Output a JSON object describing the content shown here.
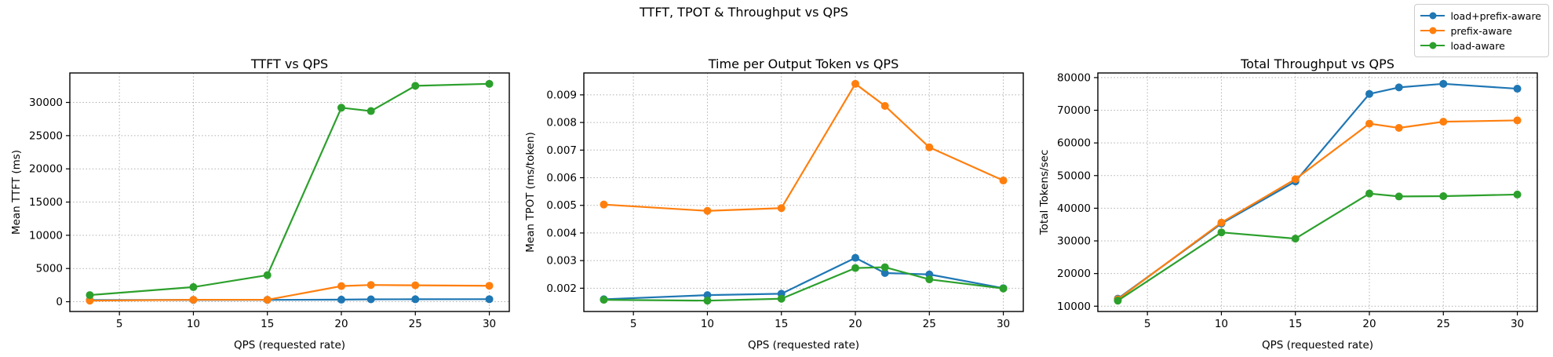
{
  "figure_title": "TTFT, TPOT & Throughput vs QPS",
  "legend": {
    "position": "top-right",
    "items": [
      {
        "label": "load+prefix-aware",
        "color": "#1f77b4"
      },
      {
        "label": "prefix-aware",
        "color": "#ff7f0e"
      },
      {
        "label": "load-aware",
        "color": "#2ca02c"
      }
    ]
  },
  "style": {
    "grid_color": "#b0b0b0",
    "frame_color": "#000000",
    "background": "#ffffff"
  },
  "chart_data": [
    {
      "type": "line",
      "title": "TTFT vs QPS",
      "xlabel": "QPS (requested rate)",
      "ylabel": "Mean TTFT (ms)",
      "grid": true,
      "legend_position": "figure-top-right",
      "x": [
        3,
        10,
        15,
        20,
        22,
        25,
        30
      ],
      "xticks": [
        5,
        10,
        15,
        20,
        25,
        30
      ],
      "xtick_labels": [
        "5",
        "10",
        "15",
        "20",
        "25",
        "30"
      ],
      "yticks": [
        0,
        5000,
        10000,
        15000,
        20000,
        25000,
        30000
      ],
      "ytick_labels": [
        "0",
        "5000",
        "10000",
        "15000",
        "20000",
        "25000",
        "30000"
      ],
      "xlim": [
        1.65,
        31.35
      ],
      "ylim": [
        -1472,
        34432
      ],
      "series": [
        {
          "name": "load+prefix-aware",
          "color": "#1f77b4",
          "values": [
            240,
            270,
            280,
            310,
            360,
            370,
            380
          ]
        },
        {
          "name": "prefix-aware",
          "color": "#ff7f0e",
          "values": [
            160,
            290,
            290,
            2350,
            2520,
            2470,
            2400
          ]
        },
        {
          "name": "load-aware",
          "color": "#2ca02c",
          "values": [
            1000,
            2200,
            4000,
            29200,
            28700,
            32500,
            32800
          ]
        }
      ]
    },
    {
      "type": "line",
      "title": "Time per Output Token vs QPS",
      "xlabel": "QPS (requested rate)",
      "ylabel": "Mean TPOT (ms/token)",
      "grid": true,
      "legend_position": "figure-top-right",
      "x": [
        3,
        10,
        15,
        20,
        22,
        25,
        30
      ],
      "xticks": [
        5,
        10,
        15,
        20,
        25,
        30
      ],
      "xtick_labels": [
        "5",
        "10",
        "15",
        "20",
        "25",
        "30"
      ],
      "yticks": [
        0.002,
        0.003,
        0.004,
        0.005,
        0.006,
        0.007,
        0.008,
        0.009
      ],
      "ytick_labels": [
        "0.002",
        "0.003",
        "0.004",
        "0.005",
        "0.006",
        "0.007",
        "0.008",
        "0.009"
      ],
      "xlim": [
        1.65,
        31.35
      ],
      "ylim": [
        0.0011575,
        0.0097925
      ],
      "series": [
        {
          "name": "load+prefix-aware",
          "color": "#1f77b4",
          "values": [
            0.0016,
            0.00175,
            0.0018,
            0.0031,
            0.00255,
            0.0025,
            0.002
          ]
        },
        {
          "name": "prefix-aware",
          "color": "#ff7f0e",
          "values": [
            0.00503,
            0.0048,
            0.0049,
            0.0094,
            0.0086,
            0.0071,
            0.0059
          ]
        },
        {
          "name": "load-aware",
          "color": "#2ca02c",
          "values": [
            0.00158,
            0.00155,
            0.00162,
            0.00273,
            0.00276,
            0.00232,
            0.00199
          ]
        }
      ]
    },
    {
      "type": "line",
      "title": "Total Throughput vs QPS",
      "xlabel": "QPS (requested rate)",
      "ylabel": "Total Tokens/sec",
      "grid": true,
      "legend_position": "figure-top-right",
      "x": [
        3,
        10,
        15,
        20,
        22,
        25,
        30
      ],
      "xticks": [
        5,
        10,
        15,
        20,
        25,
        30
      ],
      "xtick_labels": [
        "5",
        "10",
        "15",
        "20",
        "25",
        "30"
      ],
      "yticks": [
        10000,
        20000,
        30000,
        40000,
        50000,
        60000,
        70000,
        80000
      ],
      "ytick_labels": [
        "10000",
        "20000",
        "30000",
        "40000",
        "50000",
        "60000",
        "70000",
        "80000"
      ],
      "xlim": [
        1.65,
        31.35
      ],
      "ylim": [
        8380,
        81420
      ],
      "series": [
        {
          "name": "load+prefix-aware",
          "color": "#1f77b4",
          "values": [
            12300,
            35300,
            48200,
            75000,
            77000,
            78100,
            76600
          ]
        },
        {
          "name": "prefix-aware",
          "color": "#ff7f0e",
          "values": [
            12100,
            35600,
            48900,
            65900,
            64600,
            66500,
            66900
          ]
        },
        {
          "name": "load-aware",
          "color": "#2ca02c",
          "values": [
            11700,
            32600,
            30700,
            44500,
            43600,
            43700,
            44200
          ]
        }
      ]
    }
  ]
}
